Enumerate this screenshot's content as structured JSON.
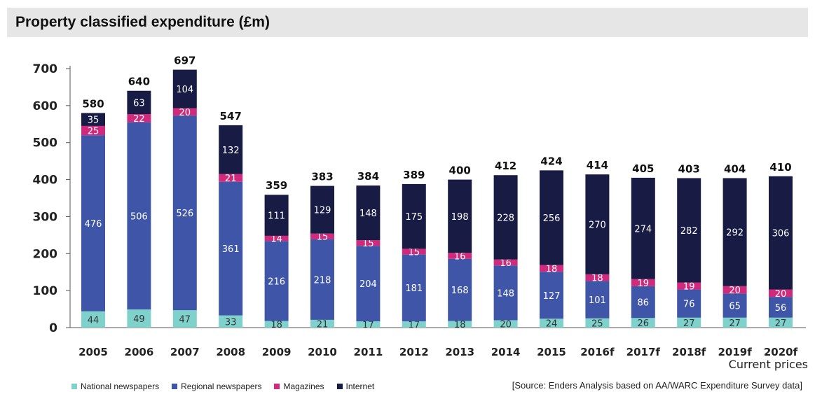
{
  "title": "Property classified expenditure (£m)",
  "note": "Current prices",
  "source": "[Source: Enders Analysis based on AA/WARC Expenditure Survey data]",
  "colors": {
    "national": "#7fd1cc",
    "regional": "#3f56a8",
    "magazines": "#d12a7c",
    "internet": "#181c45"
  },
  "chart_data": {
    "type": "bar",
    "stacked": true,
    "categories": [
      "2005",
      "2006",
      "2007",
      "2008",
      "2009",
      "2010",
      "2011",
      "2012",
      "2013",
      "2014",
      "2015",
      "2016f",
      "2017f",
      "2018f",
      "2019f",
      "2020f"
    ],
    "series": [
      {
        "name": "National newspapers",
        "values": [
          44,
          49,
          47,
          33,
          18,
          21,
          17,
          17,
          18,
          20,
          24,
          25,
          26,
          27,
          27,
          27
        ]
      },
      {
        "name": "Regional newspapers",
        "values": [
          476,
          506,
          526,
          361,
          216,
          218,
          204,
          181,
          168,
          148,
          127,
          101,
          86,
          76,
          65,
          56
        ]
      },
      {
        "name": "Magazines",
        "values": [
          25,
          22,
          20,
          21,
          14,
          15,
          15,
          15,
          16,
          16,
          18,
          18,
          19,
          19,
          20,
          20
        ]
      },
      {
        "name": "Internet",
        "values": [
          35,
          63,
          104,
          132,
          111,
          129,
          148,
          175,
          198,
          228,
          256,
          270,
          274,
          282,
          292,
          306
        ]
      }
    ],
    "totals": [
      580,
      640,
      697,
      547,
      359,
      383,
      384,
      389,
      400,
      412,
      424,
      414,
      405,
      403,
      404,
      410
    ],
    "yticks": [
      0,
      100,
      200,
      300,
      400,
      500,
      600,
      700
    ],
    "ylim": [
      0,
      700
    ],
    "grid": false,
    "legend_position": "bottom-left"
  }
}
